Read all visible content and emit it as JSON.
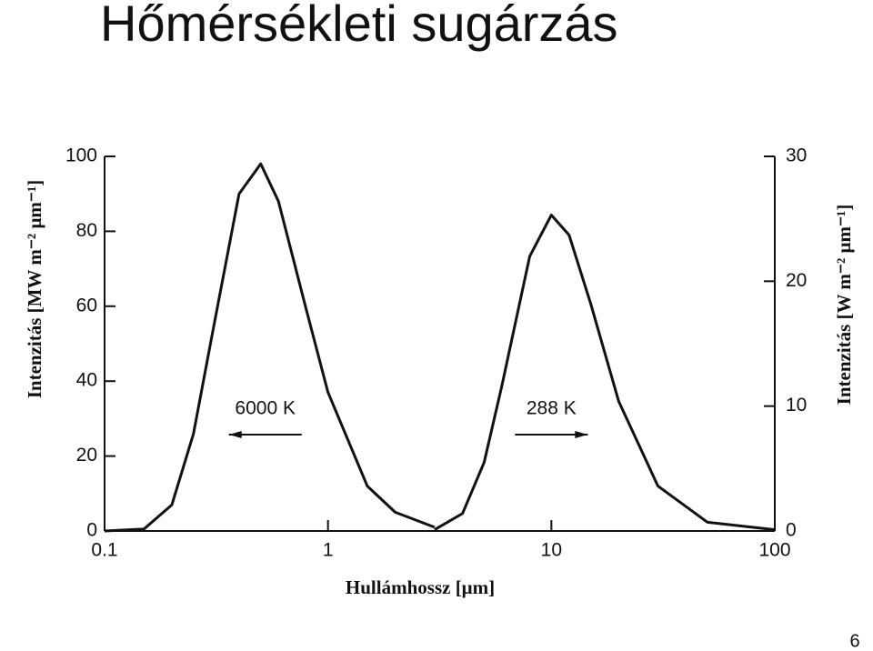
{
  "title": "Hőmérsékleti sugárzás",
  "page_number": "6",
  "chart_data": {
    "type": "line",
    "xlabel": "Hullámhossz [μm]",
    "ylabel": "Intenzitás [MW m⁻² μm⁻¹]",
    "y2label": "Intenzitás [W m⁻² μm⁻¹]",
    "xscale": "log",
    "xlim": [
      0.1,
      100
    ],
    "xticks": [
      0.1,
      1,
      10,
      100
    ],
    "ylim": [
      0,
      100
    ],
    "yticks": [
      0,
      20,
      40,
      60,
      80,
      100
    ],
    "y2lim": [
      0,
      30
    ],
    "y2ticks": [
      0,
      10,
      20,
      30
    ],
    "series": [
      {
        "name": "6000 K",
        "color": "#111111",
        "direction": "left",
        "x": [
          0.1,
          0.15,
          0.2,
          0.25,
          0.3,
          0.4,
          0.5,
          0.6,
          0.8,
          1,
          1.5,
          2,
          3
        ],
        "values": [
          0,
          0.5,
          7,
          26,
          51,
          90,
          98,
          88,
          59,
          37,
          12,
          5,
          1
        ]
      },
      {
        "name": "288 K",
        "color": "#111111",
        "axis": "y2",
        "direction": "right",
        "x": [
          3,
          4,
          5,
          6,
          8,
          10,
          12,
          15,
          20,
          30,
          50,
          100
        ],
        "values": [
          0.1,
          1.4,
          5.5,
          11.6,
          22,
          25.3,
          23.7,
          18.2,
          10.4,
          3.6,
          0.7,
          0.1
        ]
      }
    ]
  }
}
